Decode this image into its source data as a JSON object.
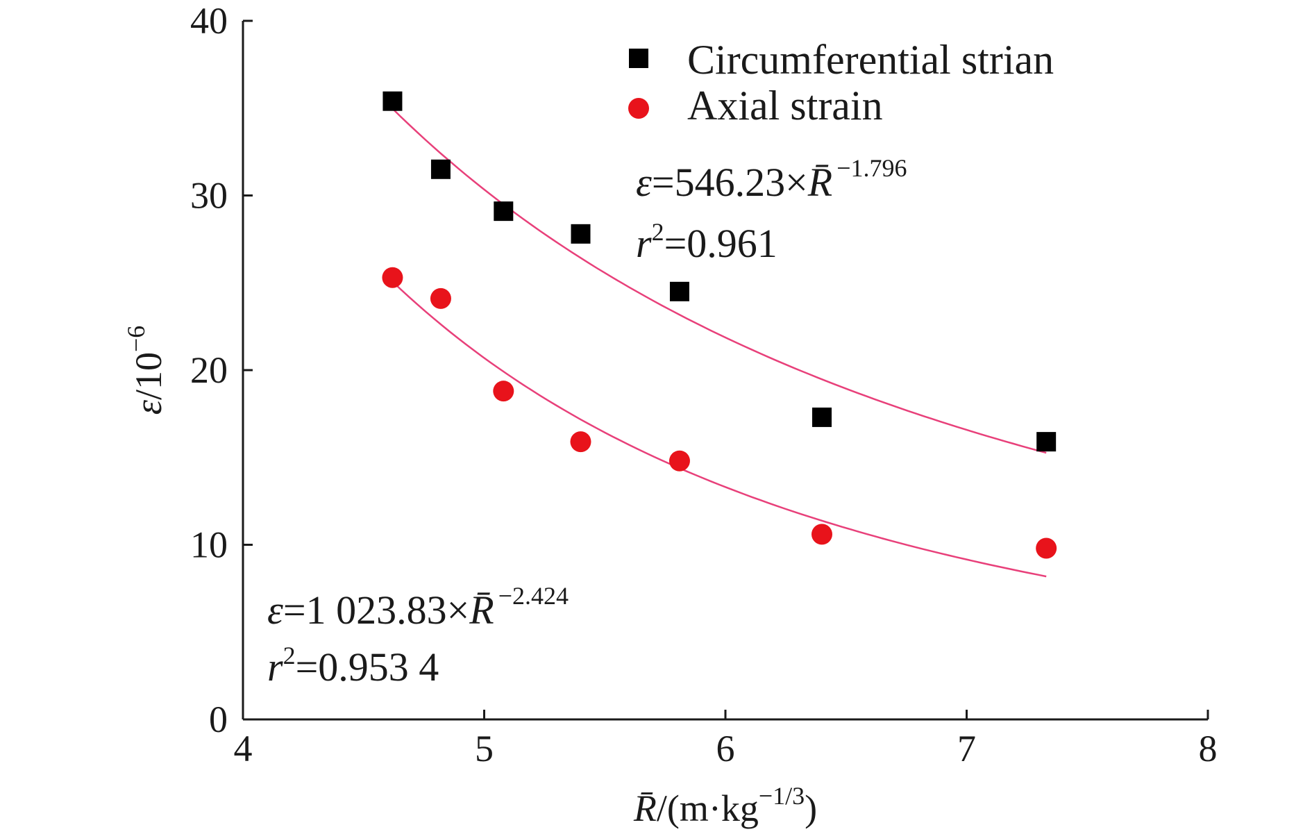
{
  "chart_data": {
    "type": "scatter",
    "xlabel": "/(m·kg−1/3)",
    "xlabel_symbol": "R̄",
    "xlabel_unit": "/(m·kg",
    "xlabel_exp": "−1/3",
    "xlabel_close": ")",
    "ylabel": "ε/10−6",
    "ylabel_symbol": "ε",
    "ylabel_unit": "/10",
    "ylabel_exp": "−6",
    "xlim": [
      4,
      8
    ],
    "ylim": [
      0,
      40
    ],
    "x_ticks": [
      "4",
      "5",
      "6",
      "7",
      "8"
    ],
    "y_ticks": [
      "0",
      "10",
      "20",
      "30",
      "40"
    ],
    "grid": false,
    "legend_position": "top-right",
    "series": [
      {
        "name": "Circumferential strian",
        "marker": "square",
        "color": "#000000",
        "x": [
          4.62,
          4.82,
          5.08,
          5.4,
          5.81,
          6.4,
          7.33
        ],
        "y": [
          35.4,
          31.5,
          29.1,
          27.8,
          24.5,
          17.3,
          15.9
        ],
        "fit": {
          "equation": "ε=546.23×R̄−1.796",
          "coefficient": 546.23,
          "exponent": -1.796,
          "r2_text": "r2=0.961",
          "color": "#e8407a"
        }
      },
      {
        "name": "Axial strain",
        "marker": "circle",
        "color": "#e8131b",
        "x": [
          4.62,
          4.82,
          5.08,
          5.4,
          5.81,
          6.4,
          7.33
        ],
        "y": [
          25.3,
          24.1,
          18.8,
          15.9,
          14.8,
          10.6,
          9.8
        ],
        "fit": {
          "equation": "ε=1 023.83×R̄−2.424",
          "coefficient": 1023.83,
          "exponent": -2.424,
          "r2_text": "r2=0.953 4",
          "color": "#e8407a"
        }
      }
    ],
    "annotations": {
      "upper_eq": {
        "lhs": "ε",
        "eq": "=546.23×",
        "sym": "R̄",
        "exp": "−1.796"
      },
      "upper_r2": {
        "lhs": "r",
        "sup": "2",
        "val": "=0.961"
      },
      "lower_eq": {
        "lhs": "ε",
        "eq": "=1 023.83×",
        "sym": "R̄",
        "exp": "−2.424"
      },
      "lower_r2": {
        "lhs": "r",
        "sup": "2",
        "val": "=0.953 4"
      }
    }
  }
}
